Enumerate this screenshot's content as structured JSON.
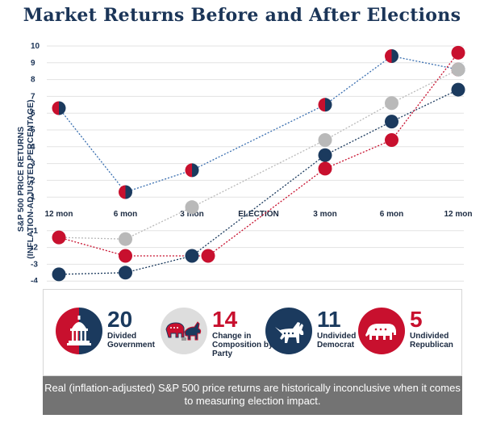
{
  "title": "Market Returns Before and After Elections",
  "ylabel_line1": "S&P 500 PRICE RETURNS",
  "ylabel_line2": "(INFLATION-ADJUSTED PERCENTAGE)",
  "chart_data": {
    "type": "line",
    "categories": [
      "12 mon",
      "6 mon",
      "3 mon",
      "ELECTION",
      "3 mon",
      "6 mon",
      "12 mon"
    ],
    "ylim": [
      -4,
      10
    ],
    "yticks": [
      -4,
      -3,
      -2,
      -1,
      1,
      2,
      3,
      4,
      5,
      6,
      7,
      8,
      9,
      10
    ],
    "grid": true,
    "series": [
      {
        "name": "Divided Government",
        "color": "split",
        "x": [
          0,
          1,
          2,
          4,
          5,
          6
        ],
        "values": [
          6.3,
          1.3,
          2.6,
          6.5,
          9.4,
          8.6
        ]
      },
      {
        "name": "Change in Composition by Party",
        "color": "#b9b9b9",
        "x": [
          0,
          1,
          2,
          4,
          5,
          6
        ],
        "values": [
          -1.4,
          -1.5,
          0.4,
          4.4,
          6.6,
          8.6
        ]
      },
      {
        "name": "Undivided Democrat",
        "color": "#1b3a5e",
        "x": [
          0,
          1,
          2,
          4,
          5,
          6
        ],
        "values": [
          -3.6,
          -3.5,
          -2.5,
          3.5,
          5.5,
          7.4
        ]
      },
      {
        "name": "Undivided Republican",
        "color": "#c8102e",
        "x": [
          0,
          1,
          2,
          4,
          5,
          6
        ],
        "values": [
          -1.4,
          -2.5,
          -2.5,
          2.7,
          4.4,
          9.6
        ]
      }
    ]
  },
  "legend": [
    {
      "count": "20",
      "label": "Divided Government",
      "color": "#1b3a5e",
      "icon": "capitol-icon"
    },
    {
      "count": "14",
      "label": "Change in Composition by Party",
      "color": "#c8102e",
      "icon": "elephant-donkey-icon"
    },
    {
      "count": "11",
      "label": "Undivided Democrat",
      "color": "#1b3a5e",
      "icon": "donkey-icon"
    },
    {
      "count": "5",
      "label": "Undivided Republican",
      "color": "#c8102e",
      "icon": "elephant-icon"
    }
  ],
  "footer": "Real (inflation-adjusted) S&P 500 price returns are historically inconclusive when it comes to measuring election impact."
}
